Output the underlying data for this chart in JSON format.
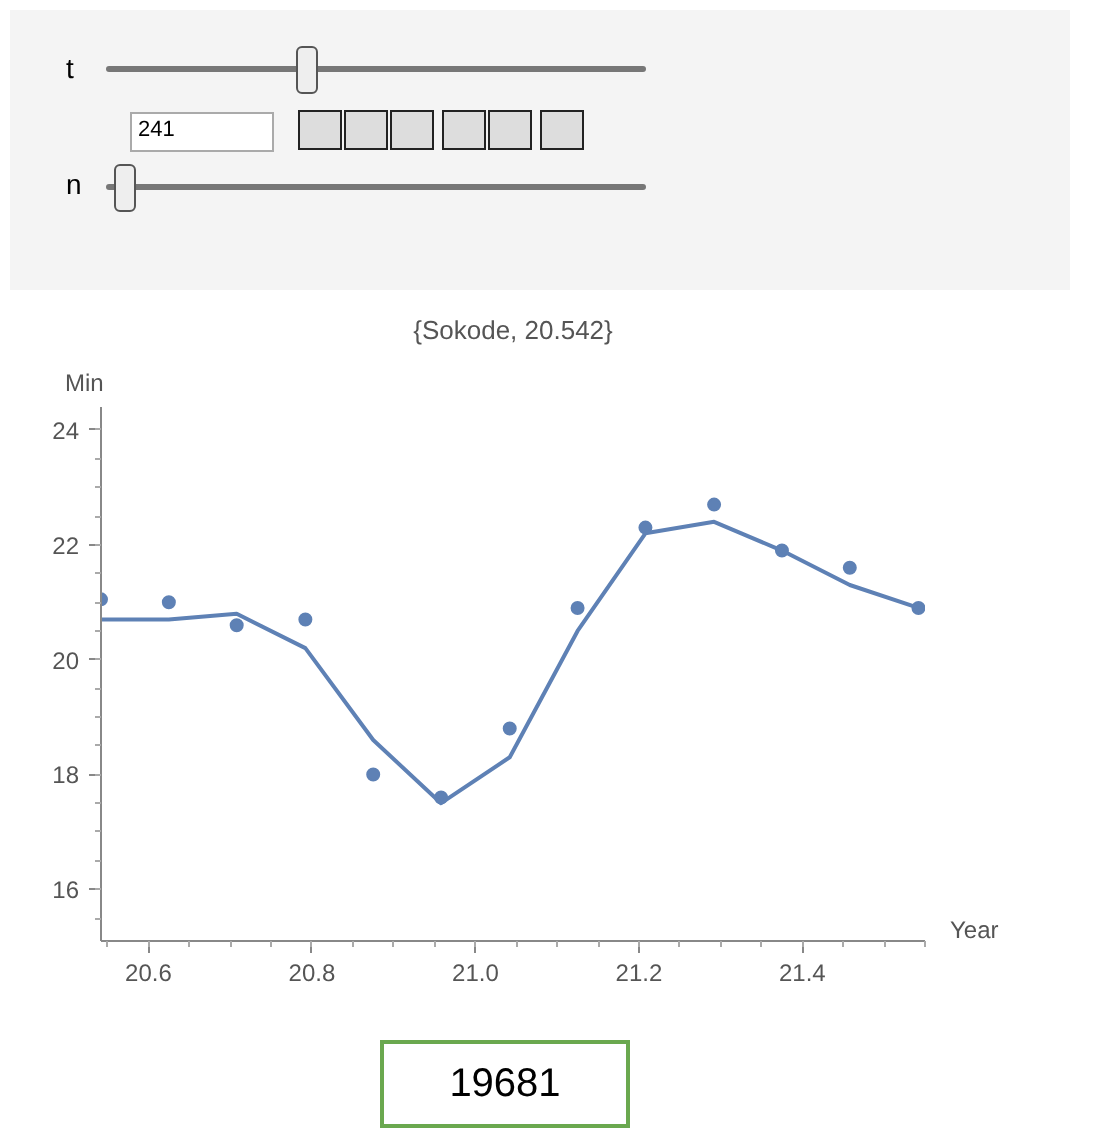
{
  "chart_data": {
    "type": "scatter",
    "title": "{Sokode, 20.542}",
    "xlabel": "Year",
    "ylabel": "Min",
    "x": [
      20.542,
      20.625,
      20.708,
      20.792,
      20.875,
      20.958,
      21.042,
      21.125,
      21.208,
      21.292,
      21.375,
      21.458,
      21.542
    ],
    "series": [
      {
        "color": "#5e81b5",
        "marker": "circle",
        "values": [
          21.05,
          21.0,
          20.6,
          20.7,
          18.0,
          17.6,
          18.8,
          20.9,
          22.3,
          22.7,
          21.9,
          21.6,
          20.9
        ]
      },
      {
        "type": "line",
        "color": "#5e81b5",
        "marker": "none",
        "values": [
          20.7,
          20.7,
          20.8,
          20.2,
          18.6,
          17.5,
          18.3,
          20.5,
          22.2,
          22.4,
          21.9,
          21.3,
          20.9
        ]
      }
    ],
    "xlim": [
      20.542,
      21.55
    ],
    "ylim": [
      15.1,
      24.4
    ],
    "xticks": [
      20.6,
      20.8,
      {
        "value": 21,
        "label": "21.0"
      },
      21.2,
      21.4
    ],
    "yticks": [
      16,
      18,
      20,
      22,
      24
    ],
    "grid": false,
    "annotations": [
      "t",
      "241",
      "n",
      "19681"
    ]
  }
}
